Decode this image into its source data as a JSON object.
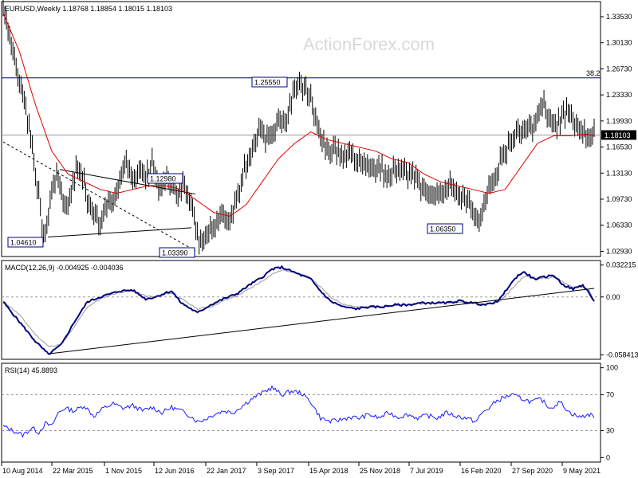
{
  "colors": {
    "bar": "#000000",
    "ma": "#e00000",
    "macd": "#000080",
    "signal": "#9a9a9a",
    "rsi": "#1a1aff",
    "panel_border": "#000000",
    "grid": "#9a9a9a"
  },
  "watermark": "ActionForex.com",
  "chart_data": [
    {
      "type": "ohlc",
      "title": "EURUSD,Weekly  1.18768 1.18854 1.18015 1.18103",
      "x_ticks": [
        "10 Aug 2014",
        "22 Mar 2015",
        "1 Nov 2015",
        "12 Jun 2016",
        "22 Jan 2017",
        "3 Sep 2017",
        "15 Apr 2018",
        "25 Nov 2018",
        "7 Jul 2019",
        "16 Feb 2020",
        "27 Sep 2020",
        "9 May 2021"
      ],
      "y_ticks": [
        "1.33530",
        "1.30130",
        "1.26730",
        "1.23330",
        "1.19930",
        "1.16530",
        "1.13130",
        "1.09730",
        "1.06330",
        "1.02930"
      ],
      "ylim": [
        1.0225,
        1.355
      ],
      "last_price_label": "1.18103",
      "level_label": "38.2",
      "level_value": 1.2555,
      "annotations": [
        {
          "text": "1.04610",
          "x": 17,
          "y": 1.0461
        },
        {
          "text": "1.03390",
          "x": 120,
          "y": 1.0339
        },
        {
          "text": "1.12980",
          "x": 112,
          "y": 1.1298
        },
        {
          "text": "1.25550",
          "x": 185,
          "y": 1.2555
        },
        {
          "text": "1.06350",
          "x": 295,
          "y": 1.0635
        }
      ],
      "anchors": [
        [
          0,
          1.35
        ],
        [
          2,
          1.33
        ],
        [
          5,
          1.3
        ],
        [
          8,
          1.27
        ],
        [
          10,
          1.245
        ],
        [
          13,
          1.23
        ],
        [
          16,
          1.19
        ],
        [
          19,
          1.15
        ],
        [
          22,
          1.1
        ],
        [
          24,
          1.06
        ],
        [
          26,
          1.05
        ],
        [
          28,
          1.08
        ],
        [
          31,
          1.12
        ],
        [
          34,
          1.13
        ],
        [
          37,
          1.1
        ],
        [
          40,
          1.085
        ],
        [
          43,
          1.12
        ],
        [
          46,
          1.14
        ],
        [
          50,
          1.12
        ],
        [
          53,
          1.09
        ],
        [
          56,
          1.08
        ],
        [
          60,
          1.06
        ],
        [
          64,
          1.09
        ],
        [
          68,
          1.1
        ],
        [
          72,
          1.12
        ],
        [
          76,
          1.14
        ],
        [
          80,
          1.12
        ],
        [
          84,
          1.14
        ],
        [
          88,
          1.12
        ],
        [
          92,
          1.15
        ],
        [
          96,
          1.11
        ],
        [
          100,
          1.12
        ],
        [
          104,
          1.12
        ],
        [
          108,
          1.1
        ],
        [
          112,
          1.12
        ],
        [
          116,
          1.09
        ],
        [
          119,
          1.06
        ],
        [
          121,
          1.04
        ],
        [
          124,
          1.05
        ],
        [
          127,
          1.06
        ],
        [
          131,
          1.07
        ],
        [
          135,
          1.085
        ],
        [
          139,
          1.07
        ],
        [
          143,
          1.09
        ],
        [
          147,
          1.12
        ],
        [
          151,
          1.15
        ],
        [
          155,
          1.17
        ],
        [
          159,
          1.19
        ],
        [
          163,
          1.175
        ],
        [
          167,
          1.18
        ],
        [
          171,
          1.2
        ],
        [
          175,
          1.19
        ],
        [
          179,
          1.235
        ],
        [
          183,
          1.245
        ],
        [
          186,
          1.24
        ],
        [
          189,
          1.235
        ],
        [
          192,
          1.215
        ],
        [
          195,
          1.18
        ],
        [
          199,
          1.17
        ],
        [
          203,
          1.16
        ],
        [
          207,
          1.165
        ],
        [
          211,
          1.15
        ],
        [
          215,
          1.16
        ],
        [
          219,
          1.15
        ],
        [
          223,
          1.145
        ],
        [
          227,
          1.14
        ],
        [
          231,
          1.14
        ],
        [
          235,
          1.135
        ],
        [
          239,
          1.13
        ],
        [
          243,
          1.14
        ],
        [
          247,
          1.135
        ],
        [
          251,
          1.13
        ],
        [
          255,
          1.12
        ],
        [
          259,
          1.115
        ],
        [
          263,
          1.1
        ],
        [
          267,
          1.11
        ],
        [
          271,
          1.1
        ],
        [
          275,
          1.115
        ],
        [
          279,
          1.11
        ],
        [
          283,
          1.1
        ],
        [
          287,
          1.095
        ],
        [
          291,
          1.08
        ],
        [
          294,
          1.065
        ],
        [
          297,
          1.09
        ],
        [
          300,
          1.11
        ],
        [
          303,
          1.12
        ],
        [
          306,
          1.14
        ],
        [
          309,
          1.15
        ],
        [
          312,
          1.17
        ],
        [
          315,
          1.18
        ],
        [
          318,
          1.19
        ],
        [
          321,
          1.18
        ],
        [
          324,
          1.2
        ],
        [
          327,
          1.19
        ],
        [
          330,
          1.215
        ],
        [
          333,
          1.22
        ],
        [
          336,
          1.21
        ],
        [
          339,
          1.195
        ],
        [
          342,
          1.19
        ],
        [
          345,
          1.205
        ],
        [
          348,
          1.215
        ],
        [
          351,
          1.2
        ],
        [
          354,
          1.19
        ],
        [
          357,
          1.195
        ],
        [
          360,
          1.185
        ],
        [
          363,
          1.18
        ],
        [
          365,
          1.181
        ]
      ],
      "ma_anchors": [
        [
          0,
          1.34
        ],
        [
          10,
          1.29
        ],
        [
          20,
          1.22
        ],
        [
          30,
          1.16
        ],
        [
          40,
          1.13
        ],
        [
          50,
          1.12
        ],
        [
          60,
          1.11
        ],
        [
          70,
          1.105
        ],
        [
          80,
          1.11
        ],
        [
          90,
          1.115
        ],
        [
          100,
          1.115
        ],
        [
          110,
          1.11
        ],
        [
          120,
          1.095
        ],
        [
          130,
          1.08
        ],
        [
          140,
          1.075
        ],
        [
          150,
          1.09
        ],
        [
          160,
          1.12
        ],
        [
          170,
          1.15
        ],
        [
          180,
          1.17
        ],
        [
          190,
          1.185
        ],
        [
          200,
          1.175
        ],
        [
          210,
          1.17
        ],
        [
          220,
          1.165
        ],
        [
          230,
          1.16
        ],
        [
          240,
          1.15
        ],
        [
          250,
          1.145
        ],
        [
          260,
          1.13
        ],
        [
          270,
          1.12
        ],
        [
          280,
          1.115
        ],
        [
          290,
          1.11
        ],
        [
          300,
          1.105
        ],
        [
          310,
          1.11
        ],
        [
          320,
          1.14
        ],
        [
          330,
          1.17
        ],
        [
          340,
          1.18
        ],
        [
          350,
          1.18
        ],
        [
          360,
          1.182
        ],
        [
          365,
          1.18
        ]
      ]
    },
    {
      "type": "line",
      "title": "MACD(12,26,9) -0.004925 -0.004036",
      "y_ticks": [
        "0.032215",
        "0.00",
        "-0.058413"
      ],
      "ylim": [
        -0.0629,
        0.0368
      ],
      "macd_anchors": [
        [
          0,
          -0.005
        ],
        [
          10,
          -0.025
        ],
        [
          20,
          -0.045
        ],
        [
          28,
          -0.058
        ],
        [
          36,
          -0.048
        ],
        [
          44,
          -0.025
        ],
        [
          52,
          -0.005
        ],
        [
          60,
          0.0
        ],
        [
          66,
          0.003
        ],
        [
          72,
          0.006
        ],
        [
          80,
          0.007
        ],
        [
          88,
          -0.002
        ],
        [
          94,
          0.0
        ],
        [
          100,
          0.004
        ],
        [
          104,
          0.006
        ],
        [
          110,
          -0.006
        ],
        [
          116,
          -0.012
        ],
        [
          120,
          -0.016
        ],
        [
          128,
          -0.008
        ],
        [
          136,
          -0.002
        ],
        [
          144,
          0.003
        ],
        [
          152,
          0.012
        ],
        [
          160,
          0.02
        ],
        [
          166,
          0.028
        ],
        [
          172,
          0.03
        ],
        [
          178,
          0.026
        ],
        [
          184,
          0.022
        ],
        [
          190,
          0.018
        ],
        [
          196,
          0.006
        ],
        [
          202,
          -0.004
        ],
        [
          210,
          -0.01
        ],
        [
          218,
          -0.012
        ],
        [
          226,
          -0.01
        ],
        [
          234,
          -0.01
        ],
        [
          242,
          -0.008
        ],
        [
          250,
          -0.008
        ],
        [
          258,
          -0.006
        ],
        [
          266,
          -0.006
        ],
        [
          274,
          -0.006
        ],
        [
          282,
          -0.004
        ],
        [
          290,
          -0.006
        ],
        [
          298,
          -0.008
        ],
        [
          306,
          -0.004
        ],
        [
          312,
          0.01
        ],
        [
          318,
          0.022
        ],
        [
          322,
          0.025
        ],
        [
          328,
          0.018
        ],
        [
          334,
          0.02
        ],
        [
          340,
          0.022
        ],
        [
          346,
          0.012
        ],
        [
          352,
          0.008
        ],
        [
          358,
          0.012
        ],
        [
          362,
          0.004
        ],
        [
          365,
          -0.005
        ]
      ],
      "signal_anchors": [
        [
          0,
          -0.004
        ],
        [
          10,
          -0.018
        ],
        [
          20,
          -0.038
        ],
        [
          28,
          -0.05
        ],
        [
          36,
          -0.048
        ],
        [
          44,
          -0.03
        ],
        [
          52,
          -0.01
        ],
        [
          60,
          -0.002
        ],
        [
          66,
          0.002
        ],
        [
          72,
          0.005
        ],
        [
          80,
          0.006
        ],
        [
          88,
          0.001
        ],
        [
          94,
          0.0
        ],
        [
          100,
          0.003
        ],
        [
          104,
          0.004
        ],
        [
          110,
          -0.002
        ],
        [
          116,
          -0.008
        ],
        [
          120,
          -0.012
        ],
        [
          128,
          -0.01
        ],
        [
          136,
          -0.004
        ],
        [
          144,
          0.001
        ],
        [
          152,
          0.008
        ],
        [
          160,
          0.016
        ],
        [
          166,
          0.023
        ],
        [
          172,
          0.027
        ],
        [
          178,
          0.026
        ],
        [
          184,
          0.023
        ],
        [
          190,
          0.019
        ],
        [
          196,
          0.01
        ],
        [
          202,
          0.0
        ],
        [
          210,
          -0.007
        ],
        [
          218,
          -0.01
        ],
        [
          226,
          -0.01
        ],
        [
          234,
          -0.01
        ],
        [
          242,
          -0.009
        ],
        [
          250,
          -0.008
        ],
        [
          258,
          -0.007
        ],
        [
          266,
          -0.006
        ],
        [
          274,
          -0.006
        ],
        [
          282,
          -0.005
        ],
        [
          290,
          -0.006
        ],
        [
          298,
          -0.007
        ],
        [
          306,
          -0.005
        ],
        [
          312,
          0.004
        ],
        [
          318,
          0.015
        ],
        [
          322,
          0.021
        ],
        [
          328,
          0.019
        ],
        [
          334,
          0.019
        ],
        [
          340,
          0.02
        ],
        [
          346,
          0.015
        ],
        [
          352,
          0.01
        ],
        [
          358,
          0.01
        ],
        [
          362,
          0.006
        ],
        [
          365,
          -0.004
        ]
      ]
    },
    {
      "type": "line",
      "title": "RSI(14) 45.8893",
      "y_ticks": [
        "100",
        "70",
        "30",
        "0"
      ],
      "ylim": [
        -5,
        105
      ],
      "levels": [
        70,
        30
      ],
      "rsi_anchors": [
        [
          0,
          35
        ],
        [
          6,
          30
        ],
        [
          12,
          25
        ],
        [
          18,
          33
        ],
        [
          22,
          28
        ],
        [
          26,
          38
        ],
        [
          30,
          35
        ],
        [
          34,
          50
        ],
        [
          38,
          55
        ],
        [
          44,
          52
        ],
        [
          50,
          58
        ],
        [
          56,
          46
        ],
        [
          62,
          55
        ],
        [
          68,
          60
        ],
        [
          74,
          55
        ],
        [
          80,
          58
        ],
        [
          86,
          52
        ],
        [
          92,
          56
        ],
        [
          98,
          50
        ],
        [
          104,
          56
        ],
        [
          110,
          52
        ],
        [
          116,
          46
        ],
        [
          120,
          40
        ],
        [
          124,
          42
        ],
        [
          130,
          48
        ],
        [
          136,
          52
        ],
        [
          142,
          50
        ],
        [
          148,
          58
        ],
        [
          154,
          66
        ],
        [
          160,
          72
        ],
        [
          166,
          78
        ],
        [
          172,
          70
        ],
        [
          178,
          74
        ],
        [
          184,
          72
        ],
        [
          190,
          62
        ],
        [
          196,
          44
        ],
        [
          202,
          40
        ],
        [
          208,
          42
        ],
        [
          214,
          45
        ],
        [
          220,
          44
        ],
        [
          226,
          48
        ],
        [
          232,
          44
        ],
        [
          238,
          50
        ],
        [
          244,
          45
        ],
        [
          250,
          48
        ],
        [
          256,
          44
        ],
        [
          262,
          47
        ],
        [
          268,
          44
        ],
        [
          274,
          50
        ],
        [
          280,
          46
        ],
        [
          286,
          44
        ],
        [
          292,
          40
        ],
        [
          296,
          50
        ],
        [
          300,
          55
        ],
        [
          304,
          62
        ],
        [
          308,
          66
        ],
        [
          314,
          70
        ],
        [
          320,
          66
        ],
        [
          326,
          62
        ],
        [
          332,
          65
        ],
        [
          338,
          55
        ],
        [
          344,
          62
        ],
        [
          350,
          50
        ],
        [
          356,
          45
        ],
        [
          362,
          48
        ],
        [
          365,
          46
        ]
      ]
    }
  ]
}
